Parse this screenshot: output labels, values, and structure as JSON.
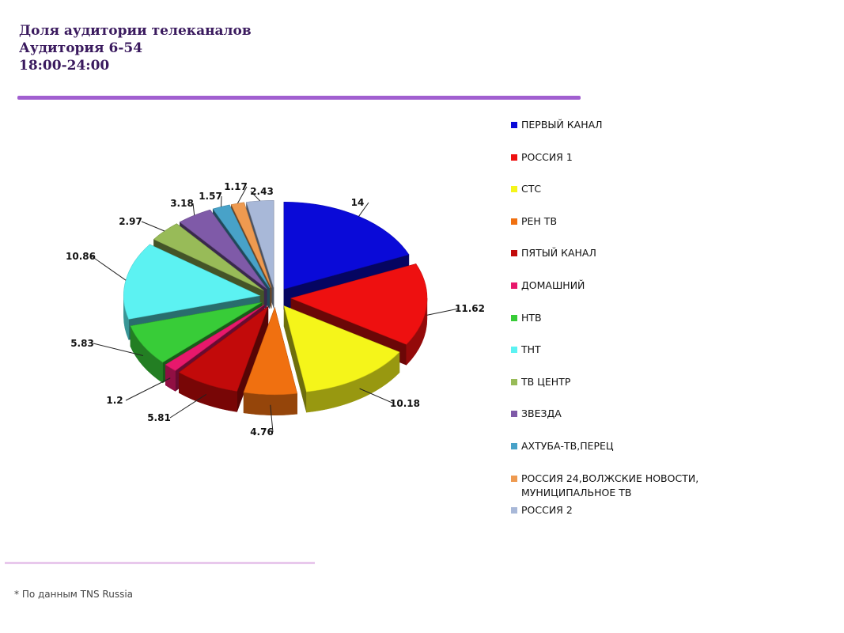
{
  "header": {
    "title_line1": "Доля аудитории телеканалов",
    "title_line2": "Аудитория 6-54",
    "title_line3": "18:00-24:00"
  },
  "footnote": "* По данным TNS Russia",
  "chart_data": {
    "type": "pie",
    "legend_position": "right",
    "slices": [
      {
        "label": "ПЕРВЫЙ КАНАЛ",
        "value": 14,
        "value_label": "14",
        "color": "#0a0ad8"
      },
      {
        "label": "РОССИЯ 1",
        "value": 11.62,
        "value_label": "11.62",
        "color": "#ee1010"
      },
      {
        "label": "СТС",
        "value": 10.18,
        "value_label": "10.18",
        "color": "#f5f51a"
      },
      {
        "label": "РЕН ТВ",
        "value": 4.76,
        "value_label": "4.76",
        "color": "#f07010"
      },
      {
        "label": "ПЯТЫЙ КАНАЛ",
        "value": 5.81,
        "value_label": "5.81",
        "color": "#c20a0a"
      },
      {
        "label": "ДОМАШНИЙ",
        "value": 1.2,
        "value_label": "1.2",
        "color": "#e8186c"
      },
      {
        "label": "НТВ",
        "value": 5.83,
        "value_label": "5.83",
        "color": "#38cc38"
      },
      {
        "label": "ТНТ",
        "value": 10.86,
        "value_label": "10.86",
        "color": "#5cf2f2"
      },
      {
        "label": "ТВ ЦЕНТР",
        "value": 2.97,
        "value_label": "2.97",
        "color": "#98bb58"
      },
      {
        "label": "ЗВЕЗДА",
        "value": 3.18,
        "value_label": "3.18",
        "color": "#7f5aa8"
      },
      {
        "label": "АХТУБА-ТВ,ПЕРЕЦ",
        "value": 1.57,
        "value_label": "1.57",
        "color": "#48a2c8"
      },
      {
        "label": "РОССИЯ 24,ВОЛЖСКИЕ НОВОСТИ, МУНИЦИПАЛЬНОЕ ТВ",
        "value": 1.17,
        "value_label": "1.17",
        "color": "#ee9a50"
      },
      {
        "label": "РОССИЯ 2",
        "value": 2.43,
        "value_label": "2.43",
        "color": "#a8b8d8"
      }
    ]
  }
}
